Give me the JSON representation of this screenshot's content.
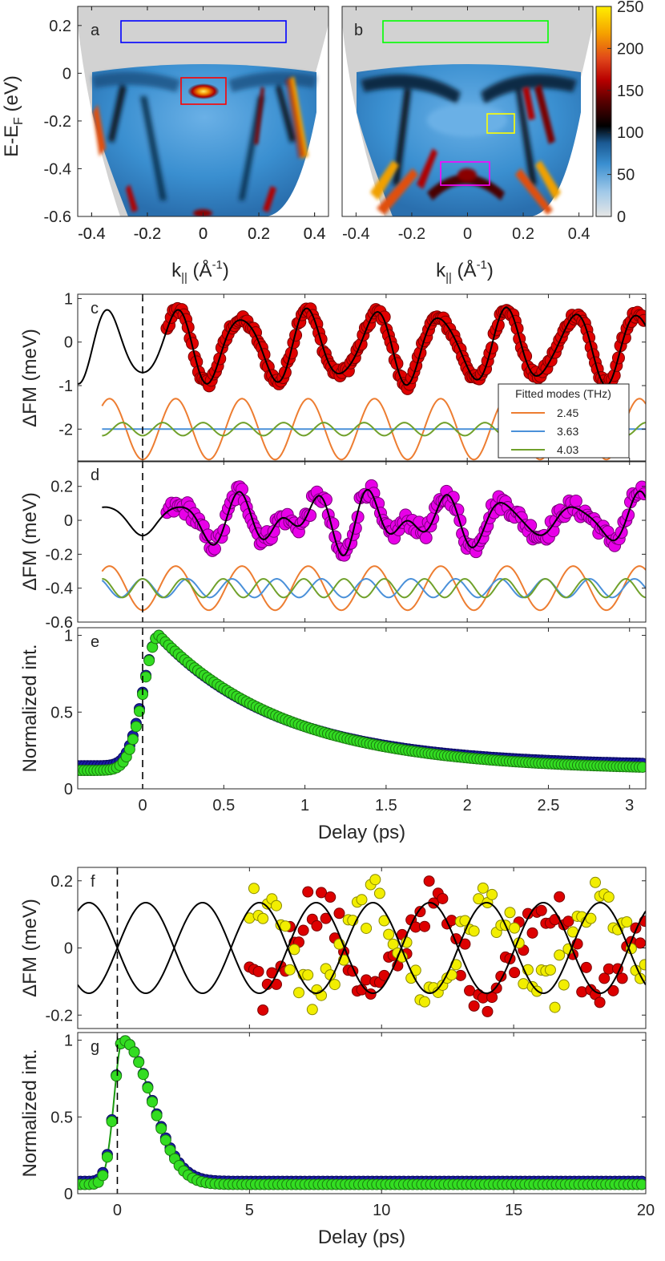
{
  "chart_data": [
    {
      "id": "a",
      "type": "heatmap",
      "panel_label": "a",
      "xlabel": "k|| (Å-1)",
      "ylabel": "E-EF (eV)",
      "xlim": [
        -0.45,
        0.45
      ],
      "ylim": [
        -0.6,
        0.28
      ],
      "xticks": [
        -0.4,
        -0.2,
        0,
        0.2,
        0.4
      ],
      "yticks": [
        0.2,
        0,
        -0.2,
        -0.4,
        -0.6
      ],
      "boxes": [
        {
          "name": "blue-box",
          "color": "#0000ff",
          "k": [
            -0.3,
            0.3
          ],
          "e": [
            0.15,
            0.25
          ]
        },
        {
          "name": "red-box",
          "color": "#ff0000",
          "k": [
            -0.08,
            0.08
          ],
          "e": [
            -0.11,
            0.0
          ]
        }
      ]
    },
    {
      "id": "b",
      "type": "heatmap",
      "panel_label": "b",
      "xlabel": "k|| (Å-1)",
      "xlim": [
        -0.45,
        0.45
      ],
      "ylim": [
        -0.6,
        0.28
      ],
      "xticks": [
        -0.4,
        -0.2,
        0,
        0.2,
        0.4
      ],
      "boxes": [
        {
          "name": "green-box",
          "color": "#00ff00",
          "k": [
            -0.3,
            0.3
          ],
          "e": [
            0.15,
            0.25
          ]
        },
        {
          "name": "yellow-box",
          "color": "#ffff00",
          "k": [
            0.08,
            0.18
          ],
          "e": [
            -0.23,
            -0.15
          ]
        },
        {
          "name": "magenta-box",
          "color": "#ff00ff",
          "k": [
            -0.08,
            0.09
          ],
          "e": [
            -0.45,
            -0.35
          ]
        }
      ],
      "colorbar": {
        "ticks": [
          0,
          50,
          100,
          150,
          200,
          250
        ],
        "range": [
          0,
          250
        ]
      }
    },
    {
      "id": "c",
      "type": "scatter",
      "panel_label": "c",
      "ylabel": "ΔFM (meV)",
      "xlim": [
        -0.4,
        3.1
      ],
      "ylim": [
        -2.75,
        1.1
      ],
      "yticks": [
        1,
        0,
        -1,
        -2
      ],
      "fit": {
        "amplitude": 0.75,
        "freq_thz": 2.45,
        "phase_ps": 0.0,
        "offset": -0.1,
        "secondary_amplitude": 0.15,
        "secondary_freq_thz": 4.03
      },
      "data_start_ps": 0.15,
      "modes_offset": -2.0,
      "modes": [
        {
          "freq": 2.45,
          "color": "#ed7d31",
          "amp": 0.7,
          "label": "2.45"
        },
        {
          "freq": 3.63,
          "color": "#4a90d9",
          "amp": 0.0,
          "label": "3.63"
        },
        {
          "freq": 4.03,
          "color": "#70a12b",
          "amp": 0.15,
          "label": "4.03"
        }
      ],
      "legend_title": "Fitted modes (THz)"
    },
    {
      "id": "d",
      "type": "scatter",
      "panel_label": "d",
      "ylabel": "ΔFM (meV)",
      "xlim": [
        -0.4,
        3.1
      ],
      "ylim": [
        -0.6,
        0.35
      ],
      "yticks": [
        0.2,
        0,
        -0.2,
        -0.4,
        -0.6
      ],
      "fit": {
        "amplitude": 0.1,
        "freq_thz": 2.45,
        "secondary_amplitude": 0.06,
        "secondary_freq_thz": 3.63,
        "third_amplitude": 0.05,
        "third_freq_thz": 4.03
      },
      "data_start_ps": 0.15,
      "modes_offset": -0.4,
      "modes": [
        {
          "freq": 2.45,
          "color": "#ed7d31",
          "amp": 0.13
        },
        {
          "freq": 3.63,
          "color": "#4a90d9",
          "amp": 0.055
        },
        {
          "freq": 4.03,
          "color": "#70a12b",
          "amp": 0.055
        }
      ]
    },
    {
      "id": "e",
      "type": "scatter",
      "panel_label": "e",
      "ylabel": "Normalized int.",
      "xlabel": "Delay (ps)",
      "xlim": [
        -0.4,
        3.1
      ],
      "ylim": [
        0,
        1.05
      ],
      "xticks": [
        0,
        0.5,
        1,
        1.5,
        2,
        2.5,
        3
      ],
      "xticklabels": [
        "0",
        "0.5",
        "1",
        "1.5",
        "2",
        "2.5",
        "3"
      ],
      "yticks": [
        0,
        0.5,
        1
      ],
      "yticklabels": [
        "0",
        "0.5",
        "1"
      ],
      "series": [
        {
          "name": "blue",
          "color": "#1a1aa8",
          "baseline": 0.15,
          "peak_ps": 0.1,
          "decay_ps": 0.75,
          "rise_sigma_ps": 0.06
        },
        {
          "name": "green",
          "color": "#33dd22",
          "baseline": 0.12,
          "peak_ps": 0.1,
          "decay_ps": 0.8,
          "rise_sigma_ps": 0.06
        }
      ]
    },
    {
      "id": "f",
      "type": "scatter",
      "panel_label": "f",
      "ylabel": "ΔFM (meV)",
      "xlim": [
        -1.5,
        20
      ],
      "ylim": [
        -0.24,
        0.24
      ],
      "yticks": [
        0.2,
        0,
        -0.2
      ],
      "fit_period_ps": 4.3,
      "fit_amplitude": 0.135,
      "data_start_ps": 5,
      "series": [
        {
          "name": "red",
          "color": "#dd0000",
          "sign": -1
        },
        {
          "name": "yellow",
          "color": "#f2ee00",
          "sign": 1
        }
      ]
    },
    {
      "id": "g",
      "type": "scatter",
      "panel_label": "g",
      "ylabel": "Normalized int.",
      "xlabel": "Delay (ps)",
      "xlim": [
        -1.5,
        20
      ],
      "ylim": [
        0,
        1.05
      ],
      "xticks": [
        0,
        5,
        10,
        15,
        20
      ],
      "xticklabels": [
        "0",
        "5",
        "10",
        "15",
        "20"
      ],
      "yticks": [
        0,
        0.5,
        1
      ],
      "yticklabels": [
        "0",
        "0.5",
        "1"
      ],
      "series": [
        {
          "name": "blue",
          "color": "#1a1aa8",
          "baseline": 0.08
        },
        {
          "name": "green",
          "color": "#33dd22",
          "baseline": 0.06
        }
      ]
    }
  ],
  "labels": {
    "a": "a",
    "b": "b",
    "c": "c",
    "d": "d",
    "e": "e",
    "f": "f",
    "g": "g",
    "ylabel_ab": "E-E",
    "ylabel_ab_sub": "F",
    "ylabel_ab_unit": " (eV)",
    "xlabel_ab_pre": "k",
    "xlabel_ab_sub": "||",
    "xlabel_ab_unit": " (Å",
    "xlabel_ab_sup": "-1",
    "xlabel_ab_close": ")",
    "ylabel_fm": "ΔFM (meV)",
    "ylabel_norm": "Normalized int.",
    "xlabel_delay": "Delay (ps)",
    "legend_title": "Fitted modes (THz)",
    "legend_items": [
      "2.45",
      "3.63",
      "4.03"
    ],
    "tick_ab_x": [
      "-0.4",
      "-0.2",
      "0",
      "0.2",
      "0.4"
    ],
    "tick_ab_y": [
      "0.2",
      "0",
      "-0.2",
      "-0.4",
      "-0.6"
    ],
    "tick_cb": [
      "250",
      "200",
      "150",
      "100",
      "50",
      "0"
    ],
    "tick_c_y": [
      "1",
      "0",
      "-1",
      "-2"
    ],
    "tick_d_y": [
      "0.2",
      "0",
      "-0.2",
      "-0.4",
      "-0.6"
    ],
    "tick_f_y": [
      "0.2",
      "0",
      "-0.2"
    ]
  }
}
